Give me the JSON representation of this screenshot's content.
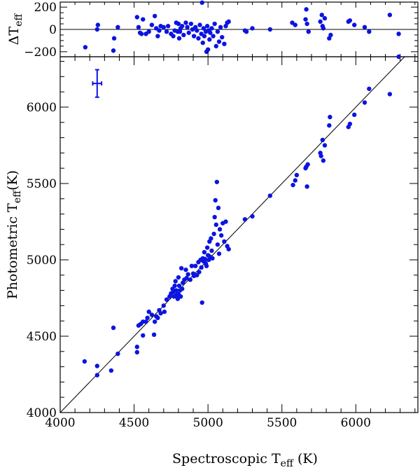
{
  "chart_data": [
    {
      "type": "scatter",
      "panel": "main",
      "xlabel_base": "Spectroscopic T",
      "xlabel_sub": "eff",
      "xlabel_unit": " (K)",
      "ylabel_base": "Photometric T",
      "ylabel_sub": "eff",
      "ylabel_unit": "(K)",
      "xlim": [
        4000,
        6420
      ],
      "ylim": [
        4000,
        6330
      ],
      "xticks": [
        "4000",
        "4500",
        "5000",
        "5500",
        "6000"
      ],
      "yticks": [
        "4000",
        "4500",
        "5000",
        "5500",
        "6000"
      ],
      "xtick_values": [
        4000,
        4500,
        5000,
        5500,
        6000
      ],
      "ytick_values": [
        4000,
        4500,
        5000,
        5500,
        6000
      ],
      "marker_color": "#0b14e0",
      "one_to_one_line": true,
      "error_bar": {
        "x": 4250,
        "y": 6155,
        "xerr": 30,
        "yerr": 90
      },
      "points": [
        [
          4165,
          4335
        ],
        [
          4250,
          4305
        ],
        [
          4250,
          4245
        ],
        [
          4345,
          4275
        ],
        [
          4360,
          4555
        ],
        [
          4390,
          4385
        ],
        [
          4520,
          4430
        ],
        [
          4520,
          4395
        ],
        [
          4530,
          4570
        ],
        [
          4545,
          4580
        ],
        [
          4560,
          4595
        ],
        [
          4560,
          4505
        ],
        [
          4580,
          4595
        ],
        [
          4590,
          4620
        ],
        [
          4600,
          4660
        ],
        [
          4620,
          4640
        ],
        [
          4635,
          4510
        ],
        [
          4640,
          4595
        ],
        [
          4650,
          4630
        ],
        [
          4660,
          4620
        ],
        [
          4670,
          4670
        ],
        [
          4680,
          4650
        ],
        [
          4700,
          4700
        ],
        [
          4705,
          4660
        ],
        [
          4720,
          4740
        ],
        [
          4740,
          4760
        ],
        [
          4750,
          4780
        ],
        [
          4760,
          4810
        ],
        [
          4765,
          4790
        ],
        [
          4770,
          4760
        ],
        [
          4775,
          4830
        ],
        [
          4780,
          4860
        ],
        [
          4785,
          4800
        ],
        [
          4790,
          4770
        ],
        [
          4795,
          4745
        ],
        [
          4800,
          4775
        ],
        [
          4800,
          4885
        ],
        [
          4805,
          4830
        ],
        [
          4810,
          4800
        ],
        [
          4815,
          4760
        ],
        [
          4820,
          4945
        ],
        [
          4825,
          4810
        ],
        [
          4830,
          4850
        ],
        [
          4840,
          4870
        ],
        [
          4850,
          4935
        ],
        [
          4855,
          4880
        ],
        [
          4865,
          4905
        ],
        [
          4880,
          4870
        ],
        [
          4890,
          4960
        ],
        [
          4900,
          4910
        ],
        [
          4905,
          4895
        ],
        [
          4915,
          4960
        ],
        [
          4925,
          4900
        ],
        [
          4935,
          4985
        ],
        [
          4940,
          4920
        ],
        [
          4950,
          5000
        ],
        [
          4955,
          4950
        ],
        [
          4960,
          4720
        ],
        [
          4965,
          5010
        ],
        [
          4970,
          4990
        ],
        [
          4975,
          5050
        ],
        [
          4980,
          5005
        ],
        [
          4985,
          4975
        ],
        [
          4990,
          4960
        ],
        [
          4995,
          5080
        ],
        [
          5000,
          5030
        ],
        [
          5005,
          5000
        ],
        [
          5010,
          5120
        ],
        [
          5015,
          5020
        ],
        [
          5020,
          5140
        ],
        [
          5025,
          5060
        ],
        [
          5030,
          5010
        ],
        [
          5040,
          5170
        ],
        [
          5045,
          5280
        ],
        [
          5050,
          5390
        ],
        [
          5055,
          5230
        ],
        [
          5060,
          5510
        ],
        [
          5065,
          5100
        ],
        [
          5070,
          5340
        ],
        [
          5075,
          5040
        ],
        [
          5080,
          5200
        ],
        [
          5090,
          5160
        ],
        [
          5100,
          5240
        ],
        [
          5110,
          5120
        ],
        [
          5120,
          5250
        ],
        [
          5130,
          5090
        ],
        [
          5140,
          5070
        ],
        [
          5250,
          5265
        ],
        [
          5300,
          5285
        ],
        [
          5420,
          5420
        ],
        [
          5575,
          5490
        ],
        [
          5590,
          5520
        ],
        [
          5600,
          5555
        ],
        [
          5660,
          5600
        ],
        [
          5665,
          5610
        ],
        [
          5670,
          5480
        ],
        [
          5675,
          5625
        ],
        [
          5760,
          5700
        ],
        [
          5765,
          5680
        ],
        [
          5775,
          5785
        ],
        [
          5780,
          5650
        ],
        [
          5790,
          5750
        ],
        [
          5820,
          5880
        ],
        [
          5825,
          5935
        ],
        [
          5950,
          5870
        ],
        [
          5960,
          5890
        ],
        [
          5990,
          5950
        ],
        [
          6060,
          6030
        ],
        [
          6090,
          6120
        ],
        [
          6230,
          6085
        ],
        [
          6290,
          6330
        ]
      ]
    },
    {
      "type": "scatter",
      "panel": "residual",
      "ylabel_prefix": "Δ",
      "ylabel_base": "T",
      "ylabel_sub": "eff",
      "xlim": [
        4000,
        6420
      ],
      "ylim": [
        -245,
        245
      ],
      "yticks": [
        "−200",
        "0",
        "200"
      ],
      "ytick_values": [
        -200,
        0,
        200
      ],
      "zero_line": true,
      "marker_color": "#0b14e0",
      "points": [
        [
          4170,
          -160
        ],
        [
          4250,
          0
        ],
        [
          4255,
          40
        ],
        [
          4360,
          -190
        ],
        [
          4365,
          -80
        ],
        [
          4390,
          20
        ],
        [
          4520,
          110
        ],
        [
          4530,
          20
        ],
        [
          4540,
          -30
        ],
        [
          4550,
          -40
        ],
        [
          4560,
          90
        ],
        [
          4580,
          -40
        ],
        [
          4600,
          -20
        ],
        [
          4620,
          40
        ],
        [
          4640,
          120
        ],
        [
          4650,
          10
        ],
        [
          4660,
          -60
        ],
        [
          4670,
          -10
        ],
        [
          4680,
          30
        ],
        [
          4700,
          20
        ],
        [
          4720,
          -20
        ],
        [
          4730,
          30
        ],
        [
          4750,
          -40
        ],
        [
          4765,
          -60
        ],
        [
          4775,
          -10
        ],
        [
          4785,
          60
        ],
        [
          4795,
          -20
        ],
        [
          4800,
          50
        ],
        [
          4805,
          -80
        ],
        [
          4810,
          -20
        ],
        [
          4815,
          10
        ],
        [
          4825,
          30
        ],
        [
          4835,
          -50
        ],
        [
          4850,
          60
        ],
        [
          4860,
          20
        ],
        [
          4870,
          -30
        ],
        [
          4885,
          50
        ],
        [
          4895,
          0
        ],
        [
          4905,
          -60
        ],
        [
          4915,
          20
        ],
        [
          4925,
          -10
        ],
        [
          4935,
          -80
        ],
        [
          4945,
          40
        ],
        [
          4955,
          -40
        ],
        [
          4960,
          240
        ],
        [
          4965,
          -120
        ],
        [
          4970,
          10
        ],
        [
          4975,
          -60
        ],
        [
          4985,
          -20
        ],
        [
          4990,
          -200
        ],
        [
          4995,
          30
        ],
        [
          5000,
          -180
        ],
        [
          5005,
          -10
        ],
        [
          5010,
          -90
        ],
        [
          5015,
          -30
        ],
        [
          5025,
          10
        ],
        [
          5035,
          -60
        ],
        [
          5045,
          50
        ],
        [
          5055,
          -150
        ],
        [
          5065,
          -20
        ],
        [
          5075,
          -110
        ],
        [
          5085,
          20
        ],
        [
          5095,
          -70
        ],
        [
          5110,
          -130
        ],
        [
          5120,
          30
        ],
        [
          5130,
          60
        ],
        [
          5140,
          70
        ],
        [
          5250,
          -10
        ],
        [
          5260,
          -20
        ],
        [
          5300,
          10
        ],
        [
          5420,
          0
        ],
        [
          5570,
          60
        ],
        [
          5590,
          40
        ],
        [
          5660,
          90
        ],
        [
          5665,
          180
        ],
        [
          5670,
          50
        ],
        [
          5680,
          -20
        ],
        [
          5760,
          70
        ],
        [
          5770,
          130
        ],
        [
          5775,
          30
        ],
        [
          5780,
          10
        ],
        [
          5790,
          100
        ],
        [
          5820,
          -80
        ],
        [
          5830,
          -50
        ],
        [
          5950,
          70
        ],
        [
          5960,
          80
        ],
        [
          5990,
          40
        ],
        [
          6060,
          20
        ],
        [
          6090,
          -20
        ],
        [
          6230,
          130
        ],
        [
          6290,
          -40
        ]
      ]
    }
  ]
}
